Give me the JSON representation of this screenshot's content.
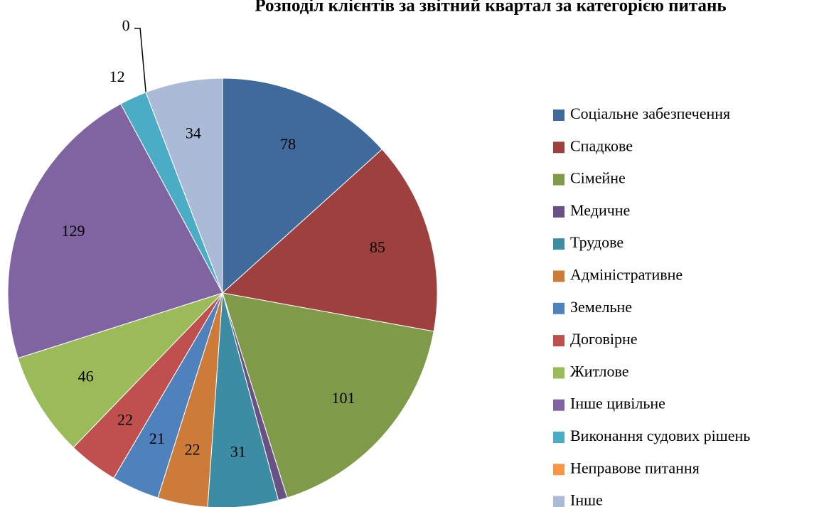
{
  "chart_data": {
    "type": "pie",
    "title": "Розподіл клієнтів за звітний квартал за категорією питань",
    "categories": [
      "Соціальне забезпечення",
      "Спадкове",
      "Сімейне",
      "Медичне",
      "Трудове",
      "Адміністративне",
      "Земельне",
      "Договірне",
      "Житлове",
      "Інше цивільне",
      "Виконання судових рішень",
      "Неправове питання",
      "Інше"
    ],
    "values": [
      78,
      85,
      101,
      4,
      31,
      22,
      21,
      22,
      46,
      129,
      12,
      0,
      34
    ],
    "value_labels": [
      "78",
      "85",
      "101",
      null,
      "31",
      "22",
      "21",
      "22",
      "46",
      "129",
      "12",
      "0",
      "34"
    ],
    "colors": [
      "#40699c",
      "#9e413e",
      "#7f9a48",
      "#695185",
      "#3c8da3",
      "#cc7b38",
      "#4f81bd",
      "#c0504d",
      "#9bbb59",
      "#8064a2",
      "#4bacc6",
      "#f79646",
      "#aabad7"
    ],
    "legend": "right"
  }
}
